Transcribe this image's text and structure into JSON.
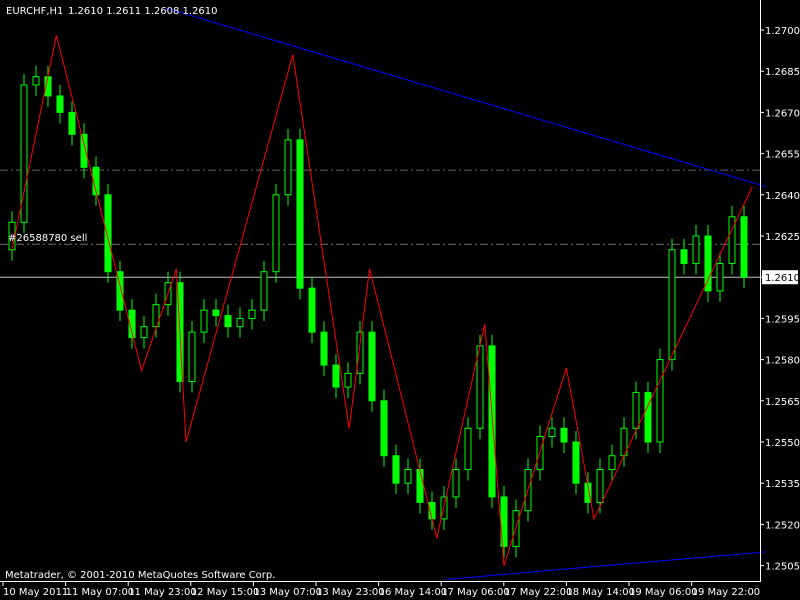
{
  "header": {
    "symbol": "EURCHF,H1",
    "ohlc_text": "1.2610 1.2611 1.2608 1.2610"
  },
  "footer": {
    "copyright": "Metatrader, © 2001-2010 MetaQuotes Software Corp."
  },
  "order_label": "#26588780 sell",
  "colors": {
    "background": "#000000",
    "candle": "#00ff00",
    "zigzag": "#ff0000",
    "trendline": "#0000ff",
    "order_line": "#00c000",
    "stop_line": "#ff0000",
    "bid_line": "#c0c0c0"
  },
  "chart_data": {
    "type": "candlestick",
    "title": "EURCHF,H1",
    "ylim": [
      1.25,
      1.2708
    ],
    "y_ticks": [
      "1.2700",
      "1.2685",
      "1.2670",
      "1.2655",
      "1.2640",
      "1.2625",
      "1.2610",
      "1.2595",
      "1.2580",
      "1.2565",
      "1.2550",
      "1.2535",
      "1.2520",
      "1.2505"
    ],
    "x_ticks": [
      "10 May 2011",
      "11 May 07:00",
      "11 May 23:00",
      "12 May 15:00",
      "13 May 07:00",
      "13 May 23:00",
      "16 May 14:00",
      "17 May 06:00",
      "17 May 22:00",
      "18 May 14:00",
      "19 May 06:00",
      "19 May 22:00"
    ],
    "closes": [
      1.263,
      1.268,
      1.2683,
      1.2676,
      1.267,
      1.2662,
      1.265,
      1.264,
      1.2612,
      1.2598,
      1.2588,
      1.2592,
      1.26,
      1.2608,
      1.2572,
      1.259,
      1.2598,
      1.2596,
      1.2592,
      1.2595,
      1.2598,
      1.2612,
      1.264,
      1.266,
      1.2606,
      1.259,
      1.2578,
      1.257,
      1.2575,
      1.259,
      1.2565,
      1.2545,
      1.2535,
      1.254,
      1.2528,
      1.2522,
      1.253,
      1.254,
      1.2555,
      1.2585,
      1.253,
      1.2512,
      1.2525,
      1.254,
      1.2552,
      1.2555,
      1.255,
      1.2535,
      1.2528,
      1.254,
      1.2545,
      1.2555,
      1.2568,
      1.255,
      1.258,
      1.262,
      1.2615,
      1.2625,
      1.2605,
      1.2615,
      1.2632,
      1.261
    ],
    "zigzag": [
      [
        0.0,
        1.262
      ],
      [
        3.7,
        1.2698
      ],
      [
        10.8,
        1.2576
      ],
      [
        13.7,
        1.2613
      ],
      [
        14.5,
        1.255
      ],
      [
        23.4,
        1.2691
      ],
      [
        28.1,
        1.2555
      ],
      [
        29.8,
        1.2613
      ],
      [
        35.4,
        1.2515
      ],
      [
        39.4,
        1.2593
      ],
      [
        41.0,
        1.2505
      ],
      [
        46.2,
        1.2577
      ],
      [
        48.5,
        1.2522
      ],
      [
        61.7,
        1.2643
      ]
    ],
    "trendlines": [
      [
        [
          12.8,
          1.2708
        ],
        [
          62.8,
          1.2643
        ]
      ],
      [
        [
          36.2,
          1.25
        ],
        [
          62.8,
          1.251
        ]
      ]
    ],
    "levels": {
      "stop": 1.2649,
      "order": 1.2622,
      "bid": 1.261
    }
  }
}
